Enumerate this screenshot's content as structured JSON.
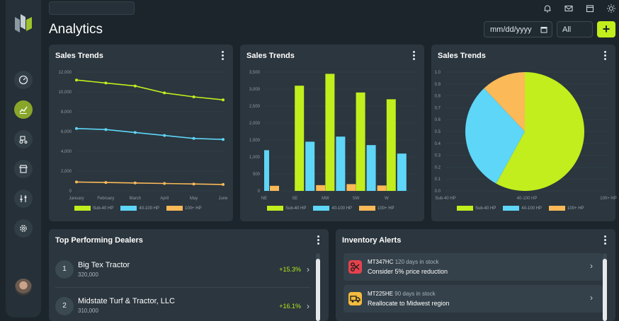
{
  "page": {
    "title": "Analytics",
    "date_placeholder": "mm/dd/yyyy",
    "filter_value": "All",
    "add_label": "+"
  },
  "colors": {
    "lime": "#c1ee1c",
    "cyan": "#5ed6f7",
    "orange": "#fbb958",
    "card": "#2b363e",
    "bg": "#1c252b"
  },
  "topbar": {
    "icons": [
      "bell-icon",
      "mail-icon",
      "calendar-icon",
      "sun-icon"
    ]
  },
  "sidebar": {
    "items": [
      {
        "icon": "speedometer-icon"
      },
      {
        "icon": "chart-icon",
        "active": true
      },
      {
        "icon": "tractor-icon"
      },
      {
        "icon": "store-icon"
      },
      {
        "icon": "sliders-icon"
      },
      {
        "icon": "gear-icon"
      }
    ]
  },
  "line_card": {
    "title": "Sales Trends",
    "chart_data": {
      "type": "line",
      "categories": [
        "January",
        "February",
        "March",
        "April",
        "May",
        "June"
      ],
      "ylim": [
        0,
        12000
      ],
      "yticks": [
        "0",
        "2,000",
        "4,000",
        "6,000",
        "8,000",
        "10,000",
        "12,000"
      ],
      "series": [
        {
          "name": "Sub-40 HP",
          "color": "#c1ee1c",
          "values": [
            11200,
            10900,
            10600,
            9900,
            9500,
            9200
          ]
        },
        {
          "name": "40-100 HP",
          "color": "#5ed6f7",
          "values": [
            6300,
            6200,
            5900,
            5600,
            5300,
            5200
          ]
        },
        {
          "name": "100+ HP",
          "color": "#fbb958",
          "values": [
            900,
            850,
            800,
            750,
            700,
            650
          ]
        }
      ]
    }
  },
  "bar_card": {
    "title": "Sales Trends",
    "chart_data": {
      "type": "bar",
      "categories": [
        "NE",
        "SE",
        "MW",
        "SW",
        "W"
      ],
      "ylim": [
        0,
        3500
      ],
      "yticks": [
        "0",
        "500",
        "1,000",
        "1,500",
        "2,000",
        "2,500",
        "3,000",
        "3,500"
      ],
      "series": [
        {
          "name": "Sub-40 HP",
          "color": "#c1ee1c",
          "values": [
            null,
            3100,
            3450,
            2900,
            2700
          ]
        },
        {
          "name": "40-100 HP",
          "color": "#5ed6f7",
          "values": [
            1200,
            1450,
            1600,
            1350,
            1100
          ]
        },
        {
          "name": "100+ HP",
          "color": "#fbb958",
          "values": [
            150,
            170,
            200,
            160,
            null
          ]
        }
      ],
      "first_series_leading": [
        true,
        false,
        false,
        false,
        false
      ]
    }
  },
  "pie_card": {
    "title": "Sales Trends",
    "chart_data": {
      "type": "pie",
      "yticks": [
        "0.0",
        "0.1",
        "0.2",
        "0.3",
        "0.4",
        "0.5",
        "0.6",
        "0.7",
        "0.8",
        "0.9",
        "1.0"
      ],
      "xticks": [
        "Sub-40 HP",
        "40-100 HP",
        "100+ HP"
      ],
      "series": [
        {
          "name": "Sub-40 HP",
          "color": "#c1ee1c",
          "value": 0.58
        },
        {
          "name": "40-100 HP",
          "color": "#5ed6f7",
          "value": 0.3
        },
        {
          "name": "100+ HP",
          "color": "#fbb958",
          "value": 0.12
        }
      ]
    }
  },
  "dealers": {
    "title": "Top Performing Dealers",
    "items": [
      {
        "rank": "1",
        "name": "Big Tex Tractor",
        "value": "320,000",
        "change": "+15.3%"
      },
      {
        "rank": "2",
        "name": "Midstate Turf & Tractor, LLC",
        "value": "310,000",
        "change": "+16.1%"
      }
    ]
  },
  "alerts": {
    "title": "Inventory Alerts",
    "items": [
      {
        "code": "MT347HC",
        "age": "120 days in stock",
        "message": "Consider 5% price reduction",
        "icon": "scissors-icon",
        "icon_color": "#e5424d"
      },
      {
        "code": "MT225HE",
        "age": "90 days in stock",
        "message": "Reallocate to Midwest region",
        "icon": "truck-icon",
        "icon_color": "#f4bb3e"
      }
    ]
  }
}
